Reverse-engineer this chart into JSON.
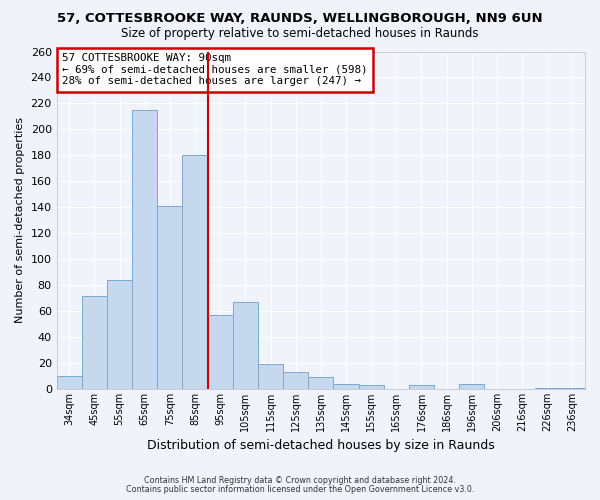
{
  "title": "57, COTTESBROOKE WAY, RAUNDS, WELLINGBOROUGH, NN9 6UN",
  "subtitle": "Size of property relative to semi-detached houses in Raunds",
  "xlabel": "Distribution of semi-detached houses by size in Raunds",
  "ylabel": "Number of semi-detached properties",
  "categories": [
    "34sqm",
    "45sqm",
    "55sqm",
    "65sqm",
    "75sqm",
    "85sqm",
    "95sqm",
    "105sqm",
    "115sqm",
    "125sqm",
    "135sqm",
    "145sqm",
    "155sqm",
    "165sqm",
    "176sqm",
    "186sqm",
    "196sqm",
    "206sqm",
    "216sqm",
    "226sqm",
    "236sqm"
  ],
  "values": [
    10,
    72,
    84,
    215,
    141,
    180,
    57,
    67,
    19,
    13,
    9,
    4,
    3,
    0,
    3,
    0,
    4,
    0,
    0,
    1,
    1
  ],
  "bar_color": "#c5d8ed",
  "bar_edge_color": "#7aaace",
  "figure_bg": "#f0f4fa",
  "axes_bg": "#f0f4fa",
  "grid_color": "#ffffff",
  "marker_line_color": "#cc0000",
  "annotation_title": "57 COTTESBROOKE WAY: 90sqm",
  "annotation_line1": "← 69% of semi-detached houses are smaller (598)",
  "annotation_line2": "28% of semi-detached houses are larger (247) →",
  "annotation_box_color": "#cc0000",
  "footer1": "Contains HM Land Registry data © Crown copyright and database right 2024.",
  "footer2": "Contains public sector information licensed under the Open Government Licence v3.0.",
  "ylim": [
    0,
    260
  ],
  "yticks": [
    0,
    20,
    40,
    60,
    80,
    100,
    120,
    140,
    160,
    180,
    200,
    220,
    240,
    260
  ]
}
